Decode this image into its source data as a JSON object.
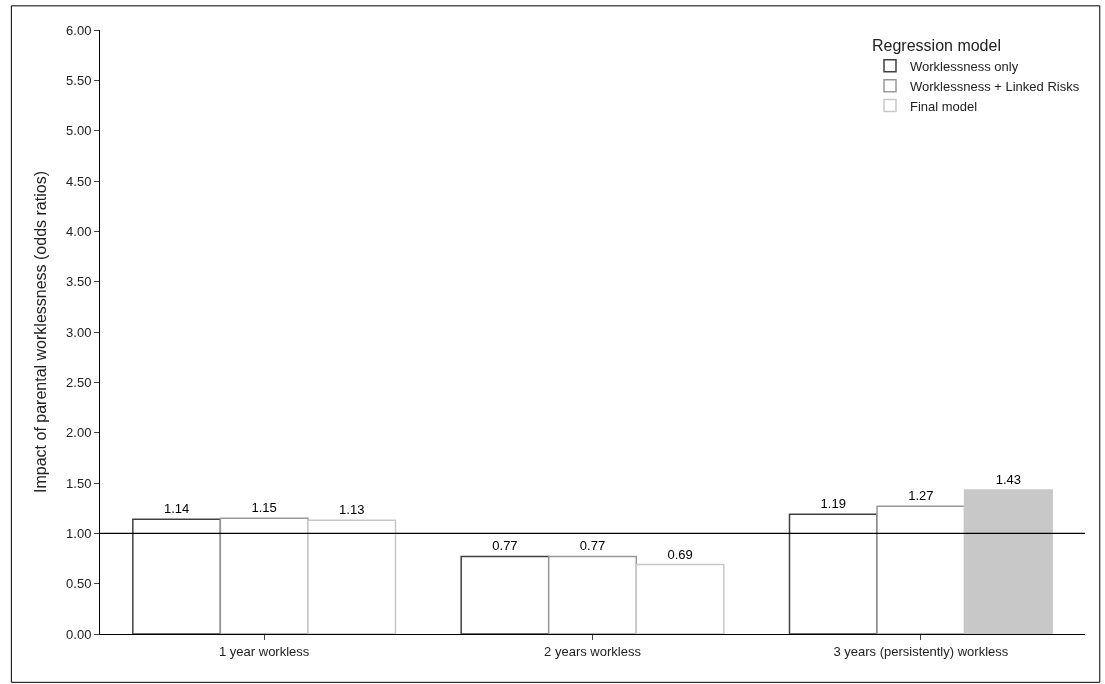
{
  "chart_data": {
    "type": "bar",
    "ylabel": "Impact of parental worklessness (odds ratios)",
    "legend_title": "Regression model",
    "categories": [
      "1 year workless",
      "2 years workless",
      "3 years (persistently) workless"
    ],
    "series": [
      {
        "name": "Worklessness only",
        "color": "#404040",
        "colors": [
          "#ffffff",
          "#ffffff",
          "#ffffff"
        ],
        "values": [
          1.14,
          0.77,
          1.19
        ]
      },
      {
        "name": "Worklessness + Linked Risks",
        "color": "#999999",
        "colors": [
          "#ffffff",
          "#ffffff",
          "#ffffff"
        ],
        "values": [
          1.15,
          0.77,
          1.27
        ]
      },
      {
        "name": "Final model",
        "color": "#c8c8c8",
        "colors": [
          "#ffffff",
          "#ffffff",
          "#c8c8c8"
        ],
        "values": [
          1.13,
          0.69,
          1.43
        ]
      }
    ],
    "ylim": [
      0,
      6
    ],
    "yticks": [
      {
        "value": 0,
        "label": "0.00"
      },
      {
        "value": 0.5,
        "label": "0.50"
      },
      {
        "value": 1,
        "label": "1.00"
      },
      {
        "value": 1.5,
        "label": "1.50"
      },
      {
        "value": 2,
        "label": "2.00"
      },
      {
        "value": 2.5,
        "label": "2.50"
      },
      {
        "value": 3,
        "label": "3.00"
      },
      {
        "value": 3.5,
        "label": "3.50"
      },
      {
        "value": 4,
        "label": "4.00"
      },
      {
        "value": 4.5,
        "label": "4.50"
      },
      {
        "value": 5,
        "label": "5.00"
      },
      {
        "value": 5.5,
        "label": "5.50"
      },
      {
        "value": 6,
        "label": "6.00"
      }
    ],
    "ref_lines": [
      {
        "axis": "y",
        "value": 1,
        "color": "#000000"
      }
    ],
    "data_labels": true,
    "legend": "top right"
  }
}
